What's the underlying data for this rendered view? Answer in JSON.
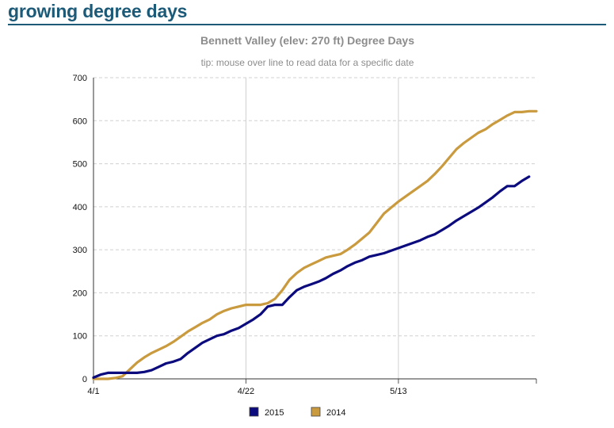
{
  "page": {
    "heading": "growing degree days"
  },
  "colors": {
    "heading": "#1d5a78",
    "series_2015": "#0b0b7e",
    "series_2014": "#c99a3e",
    "grid": "#d0d0d0"
  },
  "chart_data": {
    "type": "line",
    "title": "Bennett Valley (elev: 270 ft) Degree Days",
    "subtitle": "tip: mouse over line to read data for a specific date",
    "xlabel": "",
    "ylabel": "",
    "x_unit": "days",
    "x_start": "4/1",
    "xlim": [
      0,
      61
    ],
    "ylim": [
      0,
      700
    ],
    "y_ticks": [
      0,
      100,
      200,
      300,
      400,
      500,
      600,
      700
    ],
    "x_ticks": [
      {
        "label": "4/1",
        "day": 0
      },
      {
        "label": "4/22",
        "day": 21
      },
      {
        "label": "5/13",
        "day": 42
      }
    ],
    "grid": true,
    "legend_position": "bottom",
    "series": [
      {
        "name": "2015",
        "color": "#0b0b7e",
        "x": [
          0,
          1,
          2,
          3,
          4,
          5,
          6,
          7,
          8,
          9,
          10,
          11,
          12,
          13,
          14,
          15,
          16,
          17,
          18,
          19,
          20,
          21,
          22,
          23,
          24,
          25,
          26,
          27,
          28,
          29,
          30,
          31,
          32,
          33,
          34,
          35,
          36,
          37,
          38,
          39,
          40,
          41,
          42,
          43,
          44,
          45,
          46,
          47,
          48,
          49,
          50,
          51,
          52,
          53,
          54,
          55,
          56,
          57,
          58,
          59,
          60
        ],
        "y": [
          3,
          10,
          14,
          14,
          14,
          14,
          14,
          16,
          20,
          28,
          36,
          40,
          46,
          60,
          72,
          84,
          92,
          100,
          104,
          112,
          118,
          128,
          138,
          150,
          168,
          172,
          172,
          190,
          206,
          214,
          220,
          226,
          234,
          244,
          252,
          262,
          270,
          276,
          284,
          288,
          292,
          298,
          304,
          310,
          316,
          322,
          330,
          336,
          346,
          356,
          368,
          378,
          388,
          398,
          410,
          422,
          436,
          448,
          448,
          460,
          470
        ]
      },
      {
        "name": "2014",
        "color": "#c99a3e",
        "x": [
          0,
          1,
          2,
          3,
          4,
          5,
          6,
          7,
          8,
          9,
          10,
          11,
          12,
          13,
          14,
          15,
          16,
          17,
          18,
          19,
          20,
          21,
          22,
          23,
          24,
          25,
          26,
          27,
          28,
          29,
          30,
          31,
          32,
          33,
          34,
          35,
          36,
          37,
          38,
          39,
          40,
          41,
          42,
          43,
          44,
          45,
          46,
          47,
          48,
          49,
          50,
          51,
          52,
          53,
          54,
          55,
          56,
          57,
          58,
          59,
          60,
          61
        ],
        "y": [
          0,
          0,
          0,
          2,
          6,
          22,
          38,
          50,
          60,
          68,
          76,
          86,
          98,
          110,
          120,
          130,
          138,
          150,
          158,
          164,
          168,
          172,
          172,
          172,
          176,
          186,
          206,
          230,
          246,
          258,
          266,
          274,
          282,
          286,
          290,
          300,
          312,
          326,
          340,
          362,
          384,
          398,
          412,
          424,
          436,
          448,
          460,
          476,
          494,
          514,
          534,
          548,
          560,
          572,
          580,
          592,
          602,
          612,
          620,
          620,
          622,
          622
        ]
      }
    ]
  }
}
